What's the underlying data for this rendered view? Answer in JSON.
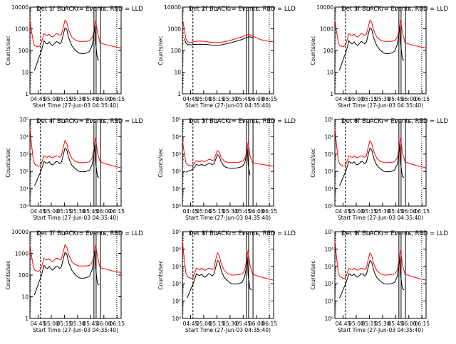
{
  "chart_data": {
    "type": "line",
    "layout": "3x3 grid",
    "colors": {
      "events": "#000000",
      "lld": "#ff0000",
      "axes": "#000000",
      "background": "#ffffff"
    },
    "ylabel": "Counts/sec",
    "xlabel": "Start Time (27-Jun-03 04:35:40)",
    "x_ticks": [
      "04:45",
      "05:00",
      "05:15",
      "05:30",
      "05:45",
      "06:00",
      "06:15"
    ],
    "x_tick_minutes": [
      9.33,
      24.33,
      39.33,
      54.33,
      69.33,
      84.33,
      99.33
    ],
    "xlim_minutes": [
      0,
      104
    ],
    "vlines_minutes": [
      12.0,
      73.0,
      75.5,
      80.5
    ],
    "dotted_vline_minutes": 99.0,
    "ylim": [
      1,
      10000
    ],
    "ylim_wide": [
      1,
      100000
    ],
    "series_shapes": {
      "panel_1": {
        "lld": [
          [
            0,
            2500
          ],
          [
            2,
            700
          ],
          [
            4,
            220
          ],
          [
            6,
            160
          ],
          [
            10,
            150
          ],
          [
            12,
            180
          ],
          [
            14,
            300
          ],
          [
            16,
            600
          ],
          [
            18,
            520
          ],
          [
            20,
            500
          ],
          [
            22,
            560
          ],
          [
            24,
            450
          ],
          [
            26,
            420
          ],
          [
            28,
            500
          ],
          [
            30,
            600
          ],
          [
            32,
            580
          ],
          [
            34,
            500
          ],
          [
            36,
            550
          ],
          [
            38,
            1200
          ],
          [
            40,
            2500
          ],
          [
            42,
            2000
          ],
          [
            44,
            900
          ],
          [
            46,
            600
          ],
          [
            48,
            400
          ],
          [
            52,
            300
          ],
          [
            56,
            260
          ],
          [
            60,
            260
          ],
          [
            64,
            260
          ],
          [
            68,
            280
          ],
          [
            71,
            400
          ],
          [
            73,
            800
          ],
          [
            75,
            2500
          ],
          [
            77,
            700
          ],
          [
            80,
            220
          ],
          [
            88,
            180
          ],
          [
            96,
            150
          ],
          [
            104,
            130
          ]
        ],
        "events": [
          [
            5,
            12
          ],
          [
            6,
            15
          ],
          [
            8,
            25
          ],
          [
            10,
            45
          ],
          [
            12,
            70
          ],
          [
            14,
            130
          ],
          [
            16,
            280
          ],
          [
            18,
            220
          ],
          [
            20,
            200
          ],
          [
            22,
            250
          ],
          [
            24,
            190
          ],
          [
            26,
            170
          ],
          [
            28,
            210
          ],
          [
            30,
            260
          ],
          [
            32,
            240
          ],
          [
            34,
            200
          ],
          [
            36,
            250
          ],
          [
            38,
            550
          ],
          [
            40,
            1100
          ],
          [
            42,
            950
          ],
          [
            44,
            400
          ],
          [
            46,
            250
          ],
          [
            48,
            160
          ],
          [
            52,
            100
          ],
          [
            56,
            75
          ],
          [
            60,
            70
          ],
          [
            64,
            75
          ],
          [
            68,
            90
          ],
          [
            71,
            180
          ],
          [
            73,
            500
          ],
          [
            74,
            1300
          ],
          [
            75,
            200
          ],
          [
            77,
            40
          ],
          [
            79,
            35
          ]
        ]
      },
      "panel_2": {
        "lld": [
          [
            0,
            2800
          ],
          [
            2,
            1000
          ],
          [
            4,
            350
          ],
          [
            6,
            250
          ],
          [
            10,
            230
          ],
          [
            14,
            260
          ],
          [
            20,
            270
          ],
          [
            26,
            260
          ],
          [
            32,
            240
          ],
          [
            38,
            230
          ],
          [
            44,
            235
          ],
          [
            50,
            260
          ],
          [
            56,
            300
          ],
          [
            62,
            360
          ],
          [
            68,
            420
          ],
          [
            72,
            500
          ],
          [
            76,
            550
          ],
          [
            82,
            430
          ],
          [
            88,
            330
          ],
          [
            94,
            280
          ],
          [
            104,
            250
          ]
        ],
        "events": [
          [
            2,
            350
          ],
          [
            4,
            220
          ],
          [
            6,
            190
          ],
          [
            10,
            180
          ],
          [
            14,
            190
          ],
          [
            20,
            195
          ],
          [
            26,
            190
          ],
          [
            32,
            180
          ],
          [
            38,
            175
          ],
          [
            44,
            180
          ],
          [
            50,
            200
          ],
          [
            56,
            230
          ],
          [
            62,
            270
          ],
          [
            68,
            320
          ],
          [
            72,
            380
          ],
          [
            76,
            430
          ],
          [
            80,
            400
          ]
        ]
      },
      "panel_4": {
        "lld": [
          [
            0,
            30000
          ],
          [
            2,
            3000
          ],
          [
            4,
            400
          ],
          [
            6,
            250
          ],
          [
            10,
            200
          ],
          [
            12,
            220
          ],
          [
            14,
            400
          ],
          [
            16,
            800
          ],
          [
            18,
            700
          ],
          [
            20,
            650
          ],
          [
            22,
            800
          ],
          [
            24,
            650
          ],
          [
            26,
            600
          ],
          [
            28,
            700
          ],
          [
            30,
            800
          ],
          [
            32,
            750
          ],
          [
            34,
            650
          ],
          [
            36,
            800
          ],
          [
            38,
            2500
          ],
          [
            40,
            6000
          ],
          [
            42,
            4000
          ],
          [
            44,
            1600
          ],
          [
            46,
            900
          ],
          [
            48,
            550
          ],
          [
            52,
            380
          ],
          [
            56,
            320
          ],
          [
            60,
            320
          ],
          [
            64,
            330
          ],
          [
            68,
            360
          ],
          [
            71,
            600
          ],
          [
            73,
            2000
          ],
          [
            75,
            9000
          ],
          [
            77,
            1200
          ],
          [
            80,
            350
          ],
          [
            88,
            260
          ],
          [
            96,
            200
          ],
          [
            104,
            160
          ]
        ],
        "events": [
          [
            5,
            15
          ],
          [
            6,
            18
          ],
          [
            8,
            30
          ],
          [
            10,
            55
          ],
          [
            12,
            90
          ],
          [
            14,
            180
          ],
          [
            16,
            380
          ],
          [
            18,
            320
          ],
          [
            20,
            300
          ],
          [
            22,
            360
          ],
          [
            24,
            260
          ],
          [
            26,
            240
          ],
          [
            28,
            300
          ],
          [
            30,
            380
          ],
          [
            32,
            350
          ],
          [
            34,
            280
          ],
          [
            36,
            350
          ],
          [
            38,
            900
          ],
          [
            40,
            2200
          ],
          [
            42,
            1800
          ],
          [
            44,
            650
          ],
          [
            46,
            350
          ],
          [
            48,
            220
          ],
          [
            52,
            140
          ],
          [
            56,
            100
          ],
          [
            60,
            95
          ],
          [
            64,
            100
          ],
          [
            68,
            120
          ],
          [
            71,
            250
          ],
          [
            73,
            900
          ],
          [
            74,
            3500
          ],
          [
            75,
            300
          ],
          [
            77,
            50
          ],
          [
            79,
            45
          ]
        ]
      },
      "panel_5": {
        "lld": [
          [
            0,
            6000
          ],
          [
            2,
            1200
          ],
          [
            4,
            320
          ],
          [
            6,
            240
          ],
          [
            10,
            210
          ],
          [
            12,
            230
          ],
          [
            14,
            300
          ],
          [
            16,
            420
          ],
          [
            18,
            380
          ],
          [
            20,
            380
          ],
          [
            22,
            420
          ],
          [
            24,
            380
          ],
          [
            26,
            380
          ],
          [
            28,
            420
          ],
          [
            30,
            500
          ],
          [
            32,
            480
          ],
          [
            34,
            430
          ],
          [
            36,
            450
          ],
          [
            38,
            900
          ],
          [
            40,
            1600
          ],
          [
            42,
            1300
          ],
          [
            44,
            700
          ],
          [
            46,
            500
          ],
          [
            48,
            380
          ],
          [
            52,
            330
          ],
          [
            56,
            320
          ],
          [
            60,
            330
          ],
          [
            64,
            340
          ],
          [
            68,
            380
          ],
          [
            71,
            520
          ],
          [
            73,
            1200
          ],
          [
            75,
            5000
          ],
          [
            77,
            800
          ],
          [
            80,
            320
          ],
          [
            88,
            270
          ],
          [
            96,
            230
          ],
          [
            104,
            200
          ]
        ],
        "events": [
          [
            4,
            90
          ],
          [
            6,
            100
          ],
          [
            8,
            110
          ],
          [
            10,
            120
          ],
          [
            12,
            140
          ],
          [
            14,
            180
          ],
          [
            16,
            260
          ],
          [
            18,
            230
          ],
          [
            20,
            230
          ],
          [
            22,
            260
          ],
          [
            24,
            220
          ],
          [
            26,
            220
          ],
          [
            28,
            250
          ],
          [
            30,
            300
          ],
          [
            32,
            290
          ],
          [
            34,
            250
          ],
          [
            36,
            270
          ],
          [
            38,
            500
          ],
          [
            40,
            900
          ],
          [
            42,
            760
          ],
          [
            44,
            380
          ],
          [
            46,
            260
          ],
          [
            48,
            190
          ],
          [
            52,
            160
          ],
          [
            56,
            150
          ],
          [
            60,
            155
          ],
          [
            64,
            165
          ],
          [
            68,
            190
          ],
          [
            71,
            300
          ],
          [
            73,
            800
          ],
          [
            74,
            2200
          ],
          [
            75,
            250
          ],
          [
            77,
            60
          ]
        ]
      }
    },
    "panels": [
      {
        "id": "det-1",
        "title": "Det 1f BLACK = Events, RED = LLD",
        "y_ticks": [
          "1",
          "10",
          "100",
          "1000",
          "10000"
        ],
        "ymax": 10000,
        "shape": "panel_1"
      },
      {
        "id": "det-2",
        "title": "Det 2f BLACK = Events, RED = LLD",
        "y_ticks": [
          "1",
          "10",
          "100",
          "1000",
          "10000"
        ],
        "ymax": 10000,
        "shape": "panel_2"
      },
      {
        "id": "det-3",
        "title": "Det 3f BLACK = Events, RED = LLD",
        "y_ticks": [
          "1",
          "10",
          "100",
          "1000",
          "10000"
        ],
        "ymax": 10000,
        "shape": "panel_1"
      },
      {
        "id": "det-4",
        "title": "Det 4f BLACK = Events, RED = LLD",
        "y_ticks": [
          "10⁰",
          "10¹",
          "10²",
          "10³",
          "10⁴",
          "10⁵"
        ],
        "ymax": 100000,
        "shape": "panel_4"
      },
      {
        "id": "det-5",
        "title": "Det 5f BLACK = Events, RED = LLD",
        "y_ticks": [
          "10⁰",
          "10¹",
          "10²",
          "10³",
          "10⁴",
          "10⁵"
        ],
        "ymax": 100000,
        "shape": "panel_5"
      },
      {
        "id": "det-6",
        "title": "Det 6f BLACK = Events, RED = LLD",
        "y_ticks": [
          "10⁰",
          "10¹",
          "10²",
          "10³",
          "10⁴",
          "10⁵"
        ],
        "ymax": 100000,
        "shape": "panel_4"
      },
      {
        "id": "det-7",
        "title": "Det 7f BLACK = Events, RED = LLD",
        "y_ticks": [
          "1",
          "10",
          "100",
          "1000",
          "10000"
        ],
        "ymax": 10000,
        "shape": "panel_1"
      },
      {
        "id": "det-8",
        "title": "Det 8f BLACK = Events, RED = LLD",
        "y_ticks": [
          "10⁰",
          "10¹",
          "10²",
          "10³",
          "10⁴",
          "10⁵"
        ],
        "ymax": 100000,
        "shape": "panel_4"
      },
      {
        "id": "det-9",
        "title": "Det 9f BLACK = Events, RED = LLD",
        "y_ticks": [
          "10⁰",
          "10¹",
          "10²",
          "10³",
          "10⁴",
          "10⁵"
        ],
        "ymax": 100000,
        "shape": "panel_4"
      }
    ]
  }
}
